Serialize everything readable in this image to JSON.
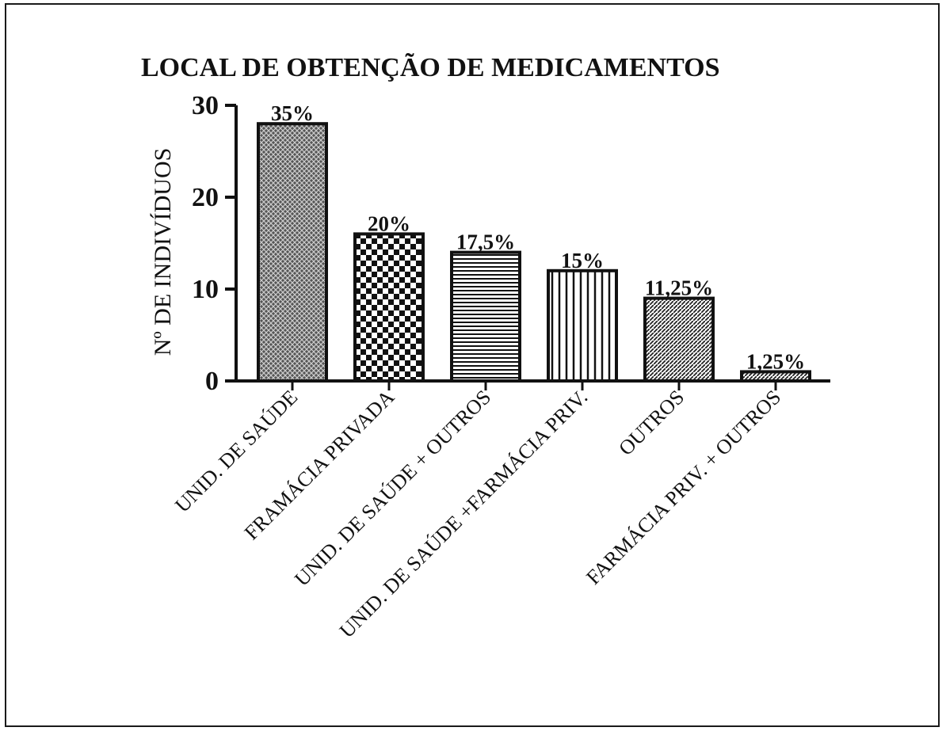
{
  "chart_data": {
    "type": "bar",
    "title": "LOCAL DE OBTENÇÃO DE MEDICAMENTOS",
    "ylabel": "Nº DE INDIVÍDUOS",
    "xlabel": "",
    "categories": [
      "UNID. DE SAÚDE",
      "FRAMÁCIA PRIVADA",
      "UNID. DE SAÚDE + OUTROS",
      "UNID. DE SAÚDE +FARMÁCIA PRIV.",
      "OUTROS",
      "FARMÁCIA PRIV. + OUTROS"
    ],
    "values": [
      28,
      16,
      14,
      12,
      9,
      1
    ],
    "data_labels": [
      "35%",
      "20%",
      "17,5%",
      "15%",
      "11,25%",
      "1,25%"
    ],
    "patterns": [
      "crosshatch",
      "checker",
      "horizontal-lines",
      "vertical-lines",
      "diagonal",
      "diagonal"
    ],
    "ylim": [
      0,
      30
    ],
    "yticks": [
      "0",
      "10",
      "20",
      "30"
    ],
    "grid": false,
    "legend": "none",
    "colors": {
      "ink": "#111111",
      "background": "#ffffff"
    }
  }
}
